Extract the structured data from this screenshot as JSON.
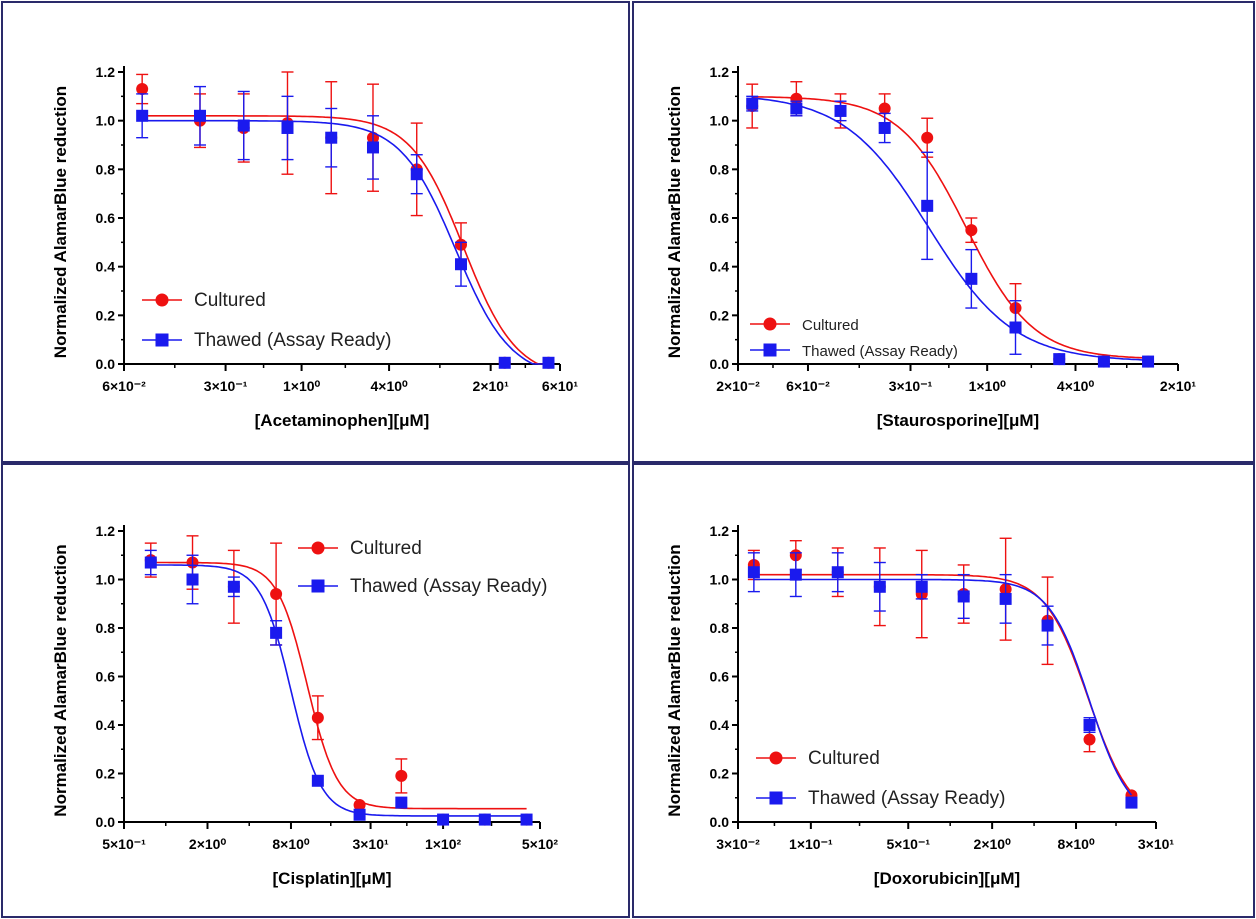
{
  "chart_data": [
    {
      "type": "scatter",
      "xlabel": "[Acetaminophen][μM]",
      "ylabel": "Normalized AlamarBlue reduction",
      "xscale": "log",
      "xlim": [
        0.06,
        60
      ],
      "ylim": [
        0,
        1.2
      ],
      "x_ticks": [
        {
          "v": 0.06,
          "label": "6×10⁻²"
        },
        {
          "v": 0.3,
          "label": "3×10⁻¹"
        },
        {
          "v": 1,
          "label": "1×10⁰"
        },
        {
          "v": 4,
          "label": "4×10⁰"
        },
        {
          "v": 20,
          "label": "2×10¹"
        },
        {
          "v": 60,
          "label": "6×10¹"
        }
      ],
      "y_ticks": [
        0.0,
        0.2,
        0.4,
        0.6,
        0.8,
        1.0,
        1.2
      ],
      "y_tick_labels": [
        "0.0",
        "0.2",
        "0.4",
        "0.6",
        "0.8",
        "1.0",
        "1.2"
      ],
      "legend_position": "bottom-left",
      "series": [
        {
          "name": "Cultured",
          "color": "#ee1111",
          "marker": "circle",
          "x": [
            0.08,
            0.2,
            0.4,
            0.8,
            1.6,
            3.1,
            6.2,
            12.5,
            25,
            50
          ],
          "y": [
            1.13,
            1.0,
            0.97,
            0.99,
            0.93,
            0.93,
            0.8,
            0.49,
            0.005,
            0.005
          ],
          "err": [
            0.06,
            0.11,
            0.14,
            0.21,
            0.23,
            0.22,
            0.19,
            0.09,
            0,
            0
          ],
          "fit": {
            "top": 1.02,
            "bottom": -0.06,
            "ec50": 13.0,
            "hill": 2.4
          }
        },
        {
          "name": "Thawed (Assay Ready)",
          "color": "#1a1aee",
          "marker": "square",
          "x": [
            0.08,
            0.2,
            0.4,
            0.8,
            1.6,
            3.1,
            6.2,
            12.5,
            25,
            50
          ],
          "y": [
            1.02,
            1.02,
            0.98,
            0.97,
            0.93,
            0.89,
            0.78,
            0.41,
            0.005,
            0.005
          ],
          "err": [
            0.09,
            0.12,
            0.14,
            0.13,
            0.12,
            0.13,
            0.08,
            0.09,
            0,
            0
          ],
          "fit": {
            "top": 1.0,
            "bottom": -0.06,
            "ec50": 11.5,
            "hill": 2.3
          }
        }
      ]
    },
    {
      "type": "scatter",
      "xlabel": "[Staurosporine][μM]",
      "ylabel": "Normalized AlamarBlue reduction",
      "xscale": "log",
      "xlim": [
        0.02,
        20
      ],
      "ylim": [
        0,
        1.2
      ],
      "x_ticks": [
        {
          "v": 0.02,
          "label": "2×10⁻²"
        },
        {
          "v": 0.06,
          "label": "6×10⁻²"
        },
        {
          "v": 0.3,
          "label": "3×10⁻¹"
        },
        {
          "v": 1,
          "label": "1×10⁰"
        },
        {
          "v": 4,
          "label": "4×10⁰"
        },
        {
          "v": 20,
          "label": "2×10¹"
        }
      ],
      "y_ticks": [
        0.0,
        0.2,
        0.4,
        0.6,
        0.8,
        1.0,
        1.2
      ],
      "y_tick_labels": [
        "0.0",
        "0.2",
        "0.4",
        "0.6",
        "0.8",
        "1.0",
        "1.2"
      ],
      "legend_position": "bottom-left",
      "series": [
        {
          "name": "Cultured",
          "color": "#ee1111",
          "marker": "circle",
          "x": [
            0.025,
            0.05,
            0.1,
            0.2,
            0.39,
            0.78,
            1.56,
            3.1,
            6.25,
            12.5
          ],
          "y": [
            1.06,
            1.09,
            1.04,
            1.05,
            0.93,
            0.55,
            0.23,
            0.02,
            0.01,
            0.01
          ],
          "err": [
            0.09,
            0.07,
            0.07,
            0.06,
            0.08,
            0.05,
            0.1,
            0,
            0,
            0
          ],
          "fit": {
            "top": 1.1,
            "bottom": 0.02,
            "ec50": 0.72,
            "hill": 1.9
          }
        },
        {
          "name": "Thawed (Assay Ready)",
          "color": "#1a1aee",
          "marker": "square",
          "x": [
            0.025,
            0.05,
            0.1,
            0.2,
            0.39,
            0.78,
            1.56,
            3.1,
            6.25,
            12.5
          ],
          "y": [
            1.07,
            1.05,
            1.04,
            0.97,
            0.65,
            0.35,
            0.15,
            0.02,
            0.01,
            0.01
          ],
          "err": [
            0.03,
            0.03,
            0.04,
            0.06,
            0.22,
            0.12,
            0.11,
            0,
            0,
            0
          ],
          "fit": {
            "top": 1.11,
            "bottom": 0.01,
            "ec50": 0.4,
            "hill": 1.5
          }
        }
      ]
    },
    {
      "type": "scatter",
      "xlabel": "[Cisplatin][μM]",
      "ylabel": "Normalized AlamarBlue reduction",
      "xscale": "log",
      "xlim": [
        0.5,
        500
      ],
      "ylim": [
        0,
        1.2
      ],
      "x_ticks": [
        {
          "v": 0.5,
          "label": "5×10⁻¹"
        },
        {
          "v": 2,
          "label": "2×10⁰"
        },
        {
          "v": 8,
          "label": "8×10⁰"
        },
        {
          "v": 30,
          "label": "3×10¹"
        },
        {
          "v": 100,
          "label": "1×10²"
        },
        {
          "v": 500,
          "label": "5×10²"
        }
      ],
      "y_ticks": [
        0.0,
        0.2,
        0.4,
        0.6,
        0.8,
        1.0,
        1.2
      ],
      "y_tick_labels": [
        "0.0",
        "0.2",
        "0.4",
        "0.6",
        "0.8",
        "1.0",
        "1.2"
      ],
      "legend_position": "top-right",
      "series": [
        {
          "name": "Cultured",
          "color": "#ee1111",
          "marker": "circle",
          "x": [
            0.78,
            1.56,
            3.1,
            6.25,
            12.5,
            25,
            50,
            100,
            200,
            400
          ],
          "y": [
            1.08,
            1.07,
            0.97,
            0.94,
            0.43,
            0.07,
            0.19,
            0.01,
            0.01,
            0.01
          ],
          "err": [
            0.07,
            0.11,
            0.15,
            0.21,
            0.09,
            0,
            0.07,
            0,
            0,
            0
          ],
          "fit": {
            "top": 1.07,
            "bottom": 0.055,
            "ec50": 10.5,
            "hill": 4.0
          }
        },
        {
          "name": "Thawed (Assay Ready)",
          "color": "#1a1aee",
          "marker": "square",
          "x": [
            0.78,
            1.56,
            3.1,
            6.25,
            12.5,
            25,
            50,
            100,
            200,
            400
          ],
          "y": [
            1.07,
            1.0,
            0.97,
            0.78,
            0.17,
            0.03,
            0.08,
            0.01,
            0.01,
            0.01
          ],
          "err": [
            0.05,
            0.1,
            0.04,
            0.05,
            0,
            0,
            0,
            0,
            0,
            0
          ],
          "fit": {
            "top": 1.06,
            "bottom": 0.025,
            "ec50": 8.0,
            "hill": 4.0
          }
        }
      ]
    },
    {
      "type": "scatter",
      "xlabel": "[Doxorubicin][μM]",
      "ylabel": "Normalized AlamarBlue reduction",
      "xscale": "log",
      "xlim": [
        0.03,
        30
      ],
      "ylim": [
        0,
        1.2
      ],
      "x_ticks": [
        {
          "v": 0.03,
          "label": "3×10⁻²"
        },
        {
          "v": 0.1,
          "label": "1×10⁻¹"
        },
        {
          "v": 0.5,
          "label": "5×10⁻¹"
        },
        {
          "v": 2,
          "label": "2×10⁰"
        },
        {
          "v": 8,
          "label": "8×10⁰"
        },
        {
          "v": 30,
          "label": "3×10¹"
        }
      ],
      "y_ticks": [
        0.0,
        0.2,
        0.4,
        0.6,
        0.8,
        1.0,
        1.2
      ],
      "y_tick_labels": [
        "0.0",
        "0.2",
        "0.4",
        "0.6",
        "0.8",
        "1.0",
        "1.2"
      ],
      "legend_position": "bottom-left",
      "series": [
        {
          "name": "Cultured",
          "color": "#ee1111",
          "marker": "circle",
          "x": [
            0.039,
            0.078,
            0.156,
            0.3125,
            0.625,
            1.25,
            2.5,
            5,
            10,
            20
          ],
          "y": [
            1.06,
            1.1,
            1.03,
            0.97,
            0.94,
            0.94,
            0.96,
            0.83,
            0.34,
            0.11
          ],
          "err": [
            0.06,
            0.06,
            0.1,
            0.16,
            0.18,
            0.12,
            0.21,
            0.18,
            0.05,
            0
          ],
          "fit": {
            "top": 1.02,
            "bottom": 0.0,
            "ec50": 9.8,
            "hill": 2.8
          }
        },
        {
          "name": "Thawed (Assay Ready)",
          "color": "#1a1aee",
          "marker": "square",
          "x": [
            0.039,
            0.078,
            0.156,
            0.3125,
            0.625,
            1.25,
            2.5,
            5,
            10,
            20
          ],
          "y": [
            1.03,
            1.02,
            1.03,
            0.97,
            0.97,
            0.93,
            0.92,
            0.81,
            0.4,
            0.08
          ],
          "err": [
            0.08,
            0.09,
            0.08,
            0.1,
            0.05,
            0.09,
            0.1,
            0.08,
            0.03,
            0
          ],
          "fit": {
            "top": 1.0,
            "bottom": 0.0,
            "ec50": 10.0,
            "hill": 3.0
          }
        }
      ]
    }
  ]
}
